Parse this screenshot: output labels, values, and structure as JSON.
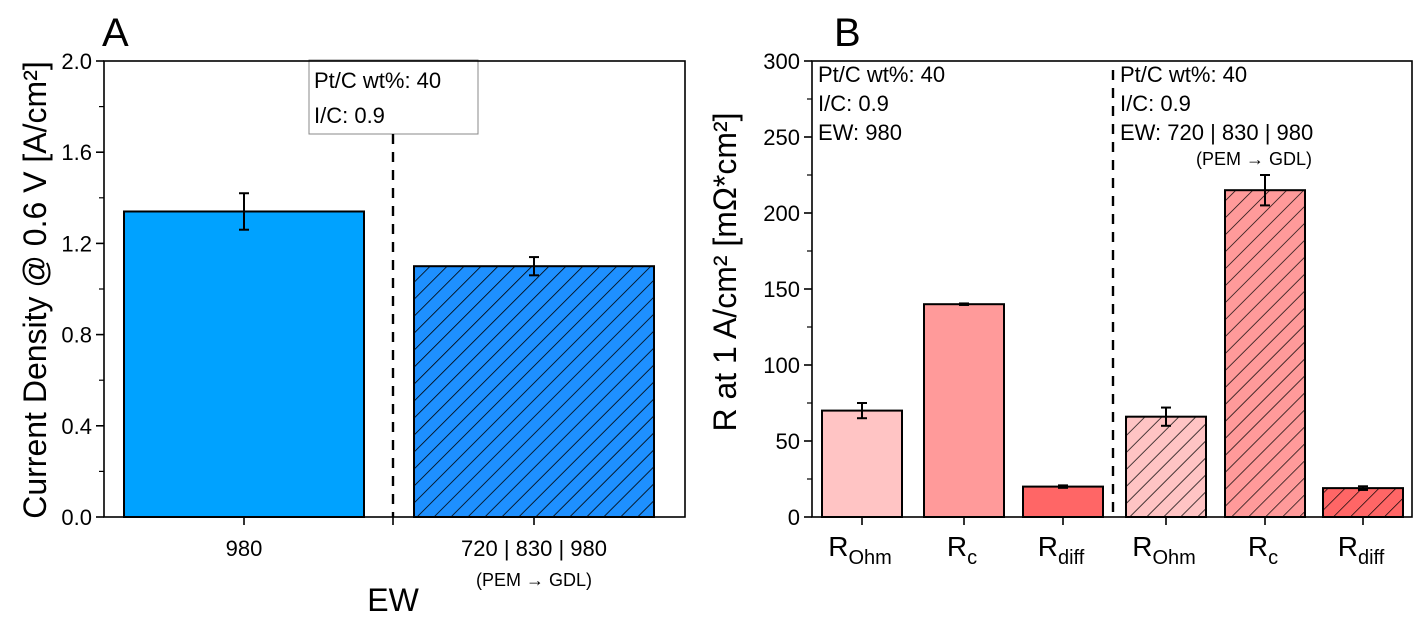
{
  "chart_data": [
    {
      "panel": "A",
      "type": "bar",
      "categories": [
        "980",
        "720 | 830 | 980"
      ],
      "category_sublabels": [
        "",
        "(PEM → GDL)"
      ],
      "values": [
        1.34,
        1.1
      ],
      "errors": [
        0.08,
        0.04
      ],
      "hatched": [
        false,
        true
      ],
      "colors": [
        "#00a2ff",
        "#1e90ff"
      ],
      "xlabel": "EW",
      "ylabel": "Current Density @ 0.6 V [A/cm²]",
      "ylim": [
        0,
        2.0
      ],
      "yticks": [
        "0.0",
        "0.4",
        "0.8",
        "1.2",
        "1.6",
        "2.0"
      ],
      "annotation": [
        "Pt/C wt%: 40",
        "I/C: 0.9"
      ]
    },
    {
      "panel": "B",
      "type": "bar",
      "categories": [
        {
          "main": "R",
          "sub": "Ohm"
        },
        {
          "main": "R",
          "sub": "c"
        },
        {
          "main": "R",
          "sub": "diff"
        },
        {
          "main": "R",
          "sub": "Ohm"
        },
        {
          "main": "R",
          "sub": "c"
        },
        {
          "main": "R",
          "sub": "diff"
        }
      ],
      "values": [
        70,
        140,
        20,
        66,
        215,
        19
      ],
      "errors": [
        5,
        0.5,
        0.8,
        6,
        10,
        1.2
      ],
      "hatched": [
        false,
        false,
        false,
        true,
        true,
        true
      ],
      "colors": [
        "#ffc4c4",
        "#ff9a9a",
        "#ff6666",
        "#ffc4c4",
        "#ff9a9a",
        "#ff6666"
      ],
      "ylabel": "R at 1 A/cm² [mΩ*cm²]",
      "ylim": [
        0,
        300
      ],
      "yticks": [
        "0",
        "50",
        "100",
        "150",
        "200",
        "250",
        "300"
      ],
      "annotation_left": [
        "Pt/C wt%: 40",
        "I/C: 0.9",
        "EW: 980"
      ],
      "annotation_right": [
        "Pt/C wt%: 40",
        "I/C: 0.9",
        "EW: 720 | 830 | 980",
        "(PEM → GDL)"
      ]
    }
  ]
}
